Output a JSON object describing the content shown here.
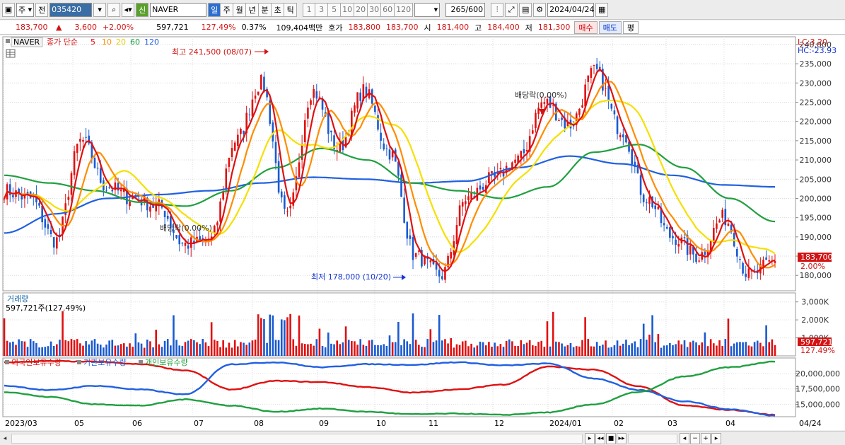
{
  "toolbar": {
    "period_sel": "주",
    "prev_label": "전",
    "code": "035420",
    "type_badge": "신",
    "name": "NAVER",
    "periods": [
      "일",
      "주",
      "월",
      "년",
      "분",
      "초",
      "틱"
    ],
    "active_period": "일",
    "intervals": [
      "1",
      "3",
      "5",
      "10",
      "20",
      "30",
      "60",
      "120"
    ],
    "count": "265",
    "count_total": "/600",
    "date": "2024/04/24"
  },
  "quote": {
    "price": "183,700",
    "change": "3,600",
    "change_pct": "+2.00%",
    "volume": "597,721",
    "vol_ratio": "127.49%",
    "turnover": "0.37%",
    "amount": "109,404백만",
    "hoga_label": "호가",
    "hoga_sell": "183,800",
    "hoga_buy": "183,700",
    "open_label": "시",
    "open": "181,400",
    "high_label": "고",
    "high": "184,400",
    "low_label": "저",
    "low": "181,300",
    "buy_btn": "매수",
    "sell_btn": "매도",
    "eval_btn": "평"
  },
  "price_panel": {
    "legend_name": "NAVER",
    "legend_ma": "종가 단순",
    "ma_periods": [
      "5",
      "10",
      "20",
      "60",
      "120"
    ],
    "ma_colors": [
      "#e01010",
      "#ff8c00",
      "#f5e000",
      "#20a040",
      "#2060e0"
    ],
    "lc_label": "LC:3.20",
    "hc_label": "HC:-23.93",
    "high_annot": "최고 241,500 (08/07)",
    "low_annot": "최저 178,000 (10/20)",
    "div_annot_1": "배당락(0.00%)",
    "div_annot_2": "배당락(0.00%)",
    "last_price_tag": "183,700",
    "last_pct_tag": "2.00%"
  },
  "volume_panel": {
    "title": "거래량",
    "value_label": "597,721주(127.49%)",
    "last_tag": "597,721",
    "last_pct": "127.49%"
  },
  "holdings_panel": {
    "legend": [
      "외국인보유수량",
      "기관보유수량",
      "개인보유수량"
    ],
    "colors": [
      "#e01010",
      "#2060e0",
      "#20a040"
    ]
  },
  "xaxis": {
    "labels": [
      "2023/03",
      "05",
      "06",
      "07",
      "08",
      "09",
      "10",
      "11",
      "12",
      "2024/01",
      "02",
      "03",
      "04"
    ],
    "right_label": "04/24"
  },
  "chart_data": [
    {
      "type": "candlestick",
      "title": "NAVER",
      "ylim": [
        176000,
        242000
      ],
      "yticks": [
        180000,
        185000,
        190000,
        195000,
        200000,
        205000,
        210000,
        215000,
        220000,
        225000,
        230000,
        235000,
        240000
      ],
      "ytick_labels": [
        "180,000",
        "185,000",
        "190,000",
        "195,000",
        "200,000",
        "205,000",
        "210,000",
        "215,000",
        "220,000",
        "225,000",
        "230,000",
        "235,000",
        "240,000"
      ],
      "x": [
        "2023/03",
        "05",
        "06",
        "07",
        "08",
        "09",
        "10",
        "11",
        "12",
        "2024/01",
        "02",
        "03",
        "04"
      ],
      "close_anchors": [
        202000,
        200000,
        189000,
        215000,
        203000,
        200000,
        198000,
        188000,
        189000,
        215000,
        230000,
        195000,
        228000,
        213000,
        228000,
        212000,
        185000,
        180000,
        200000,
        205000,
        210000,
        225000,
        219000,
        233000,
        218000,
        200000,
        190000,
        185000,
        195000,
        180000,
        183700
      ],
      "high": 241500,
      "low": 178000,
      "ma_series": [
        "MA5",
        "MA10",
        "MA20",
        "MA60",
        "MA120"
      ],
      "ma60_anchors": [
        206000,
        204000,
        202000,
        199000,
        198000,
        202000,
        208000,
        213000,
        210000,
        204000,
        202000,
        200000,
        203000,
        212000,
        214000,
        208000,
        200000,
        194000
      ],
      "ma120_anchors": [
        191000,
        196000,
        200000,
        201000,
        202000,
        204000,
        205500,
        205000,
        204000,
        204500,
        208000,
        211000,
        209000,
        206000,
        203500,
        203000
      ]
    },
    {
      "type": "bar",
      "title": "거래량",
      "ylim": [
        0,
        3500000
      ],
      "yticks": [
        1000000,
        2000000,
        3000000
      ],
      "ytick_labels": [
        "1,000K",
        "2,000K",
        "3,000K"
      ],
      "last_value": 597721
    },
    {
      "type": "line",
      "title": "보유수량",
      "ylim": [
        13000000,
        22500000
      ],
      "yticks": [
        15000000,
        17500000,
        20000000
      ],
      "ytick_labels": [
        "15,000,000",
        "17,500,000",
        "20,000,000"
      ],
      "series": [
        {
          "name": "외국인보유수량",
          "anchors": [
            21800000,
            22000000,
            21900000,
            21500000,
            20500000,
            17400000,
            18800000,
            18600000,
            17800000,
            16900000,
            17400000,
            18200000,
            21100000,
            20600000,
            17900000,
            14800000,
            14100000,
            13300000
          ]
        },
        {
          "name": "기관보유수량",
          "anchors": [
            18000000,
            17300000,
            18000000,
            17400000,
            16600000,
            21500000,
            21800000,
            21000000,
            21500000,
            21400000,
            21800000,
            21300000,
            21600000,
            19200000,
            17300000,
            15500000,
            14200000,
            13200000
          ]
        },
        {
          "name": "개인보유수량",
          "anchors": [
            17000000,
            16200000,
            15000000,
            14800000,
            15800000,
            14800000,
            13800000,
            14300000,
            13800000,
            13400000,
            13500000,
            13300000,
            13700000,
            15000000,
            17000000,
            19500000,
            21000000,
            21900000
          ]
        }
      ]
    }
  ]
}
